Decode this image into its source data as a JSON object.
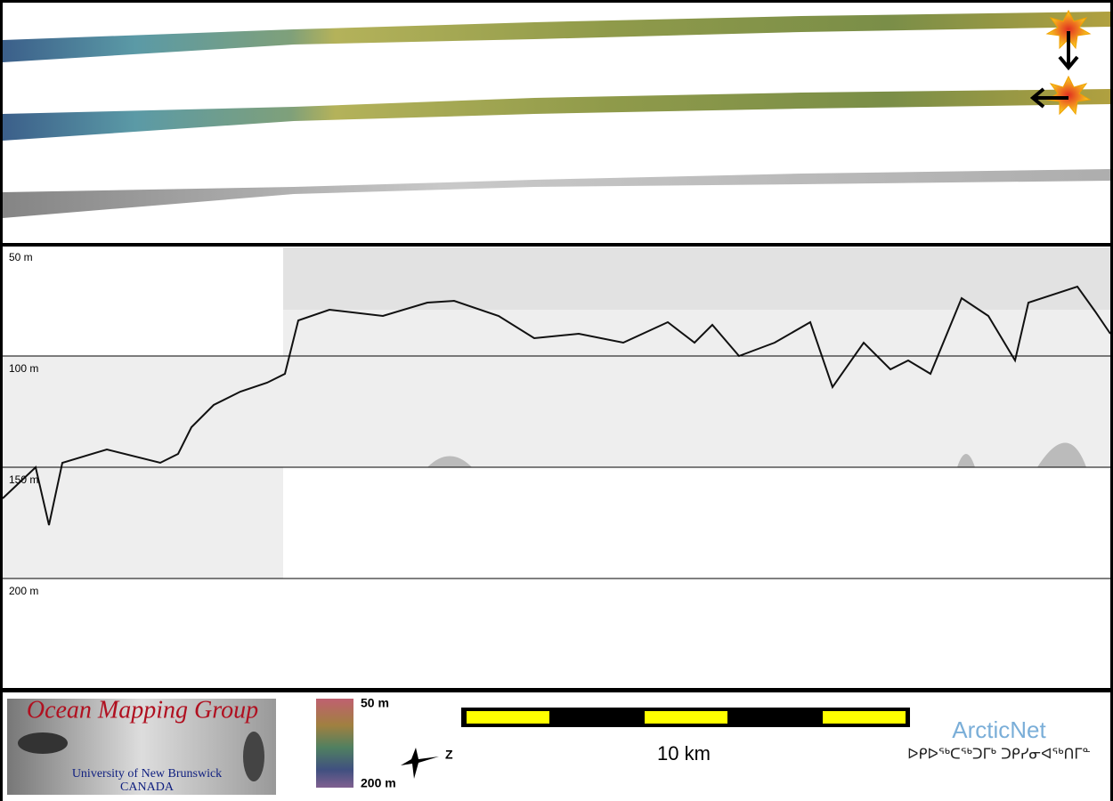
{
  "profile": {
    "depth_labels": [
      "50 m",
      "100 m",
      "150 m",
      "200 m"
    ]
  },
  "legend": {
    "logo": {
      "title": "Ocean Mapping Group",
      "institution": "University of New Brunswick",
      "country": "CANADA"
    },
    "colorbar": {
      "top": "50 m",
      "bottom": "200 m"
    },
    "north": "Z",
    "scale": "10 km",
    "partner": {
      "name": "ArcticNet",
      "syllabics": "ᐅᑭᐅᖅᑕᖅᑐᒥᒃ ᑐᑭᓯᓂᐊᖅᑎᒥᓐ"
    }
  }
}
